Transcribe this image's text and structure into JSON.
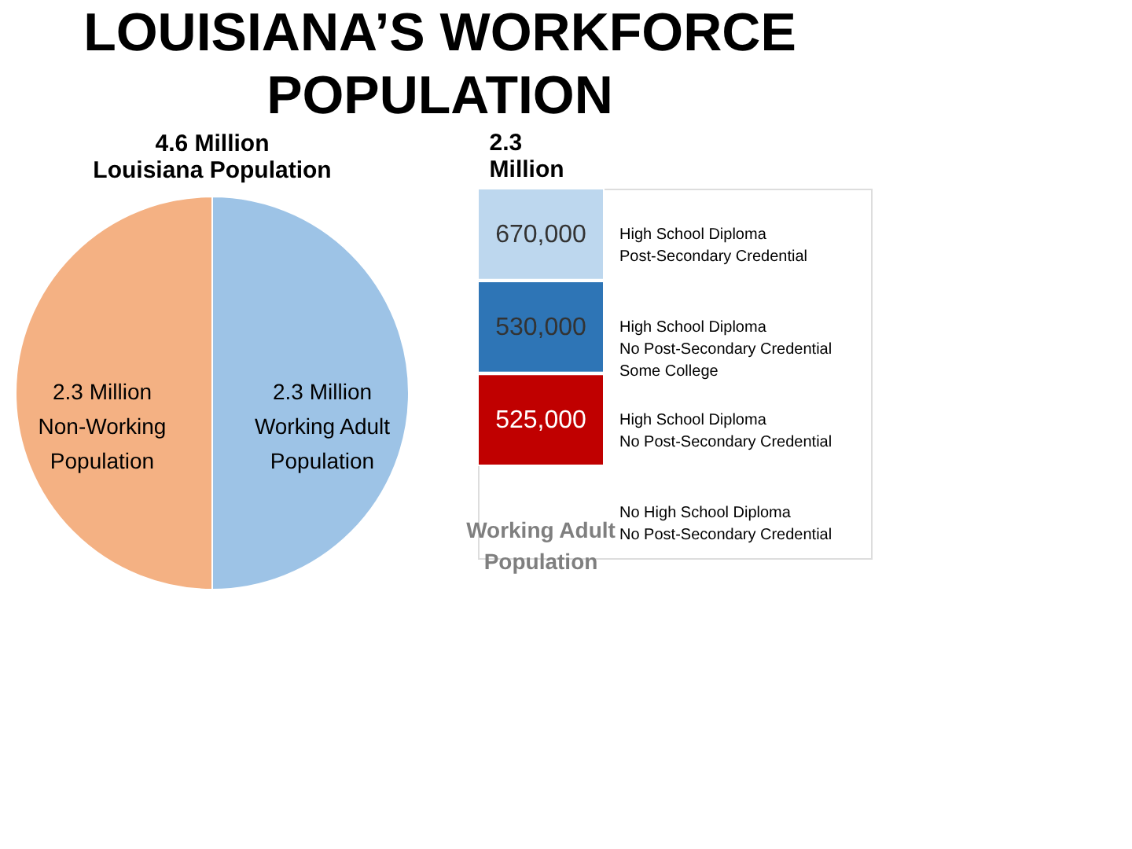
{
  "chart_data": [
    {
      "type": "pie",
      "title": "LOUISIANA’S WORKFORCE\nPOPULATION",
      "subtitle": "4.6 Million\nLouisiana Population",
      "categories": [
        "2.3 Million\nWorking Adult\nPopulation",
        "2.3 Million\nNon-Working\nPopulation"
      ],
      "values": [
        2.3,
        2.3
      ],
      "colors": [
        "#9dc3e6",
        "#f4b183"
      ]
    },
    {
      "type": "other",
      "title": "2.3\nMillion",
      "xlabel": "Working Adult\nPopulation",
      "categories": [
        "High School Diploma\nPost-Secondary Credential",
        "High School Diploma\nNo Post-Secondary Credential\nSome College",
        "High School Diploma\nNo Post-Secondary Credential",
        "No High School Diploma\nNo Post-Secondary Credential"
      ],
      "values": [
        670000,
        530000,
        525000,
        null
      ],
      "value_labels": [
        "670,000",
        "530,000",
        "525,000",
        null
      ],
      "colors": [
        "#bdd7ee",
        "#2e75b6",
        "#c00000",
        null
      ]
    }
  ]
}
